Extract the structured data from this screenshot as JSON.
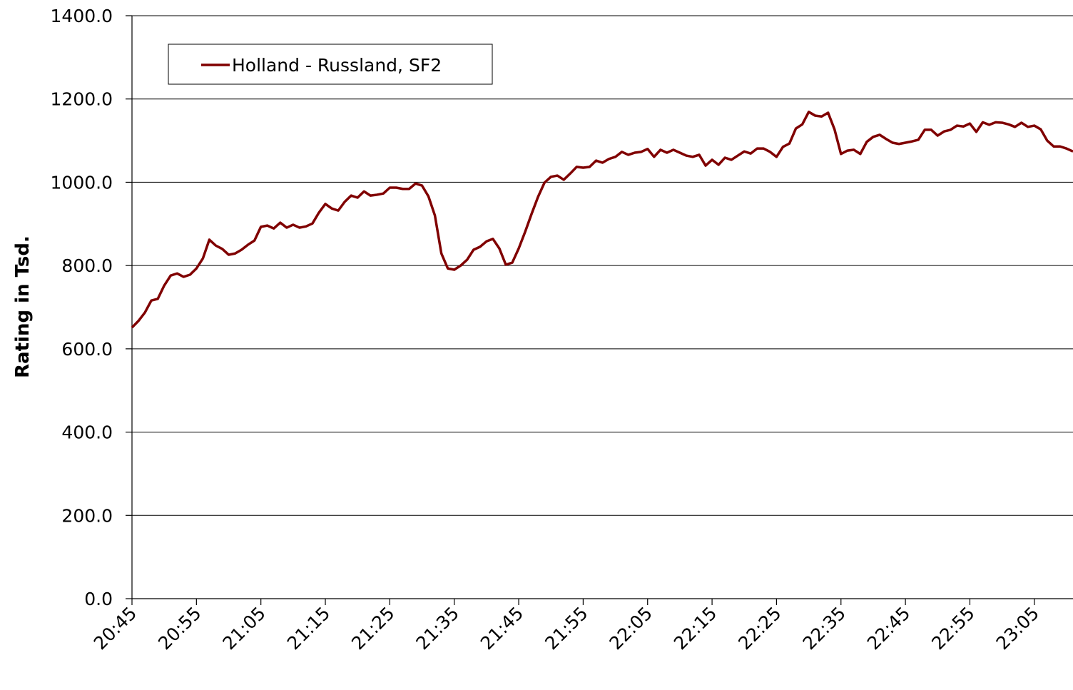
{
  "chart_data": {
    "type": "line",
    "y_label": "Rating in Tsd.",
    "categories": [
      "20:45",
      null,
      null,
      null,
      null,
      null,
      null,
      null,
      null,
      null,
      "20:55",
      null,
      null,
      null,
      null,
      null,
      null,
      null,
      null,
      null,
      "21:05",
      null,
      null,
      null,
      null,
      null,
      null,
      null,
      null,
      null,
      "21:15",
      null,
      null,
      null,
      null,
      null,
      null,
      null,
      null,
      null,
      "21:25",
      null,
      null,
      null,
      null,
      null,
      null,
      null,
      null,
      null,
      "21:35",
      null,
      null,
      null,
      null,
      null,
      null,
      null,
      null,
      null,
      "21:45",
      null,
      null,
      null,
      null,
      null,
      null,
      null,
      null,
      null,
      "21:55",
      null,
      null,
      null,
      null,
      null,
      null,
      null,
      null,
      null,
      "22:05",
      null,
      null,
      null,
      null,
      null,
      null,
      null,
      null,
      null,
      "22:15",
      null,
      null,
      null,
      null,
      null,
      null,
      null,
      null,
      null,
      "22:25",
      null,
      null,
      null,
      null,
      null,
      null,
      null,
      null,
      null,
      "22:35",
      null,
      null,
      null,
      null,
      null,
      null,
      null,
      null,
      null,
      "22:45",
      null,
      null,
      null,
      null,
      null,
      null,
      null,
      null,
      null,
      "22:55",
      null,
      null,
      null,
      null,
      null,
      null,
      null,
      null,
      null,
      "23:05",
      null,
      null,
      null,
      null,
      null,
      null
    ],
    "series": [
      {
        "name": "Holland - Russland, SF2",
        "color": "#800000",
        "values": [
          651,
          667,
          687,
          716,
          720,
          752,
          776,
          781,
          773,
          778,
          793,
          817,
          862,
          848,
          840,
          826,
          829,
          838,
          850,
          860,
          893,
          896,
          889,
          903,
          891,
          898,
          891,
          894,
          901,
          927,
          948,
          937,
          932,
          953,
          968,
          963,
          978,
          968,
          970,
          973,
          987,
          987,
          984,
          984,
          997,
          992,
          966,
          920,
          829,
          793,
          790,
          800,
          814,
          838,
          845,
          858,
          864,
          841,
          802,
          807,
          841,
          881,
          924,
          965,
          999,
          1013,
          1016,
          1006,
          1021,
          1037,
          1035,
          1037,
          1052,
          1047,
          1056,
          1061,
          1073,
          1066,
          1071,
          1073,
          1080,
          1061,
          1078,
          1071,
          1078,
          1071,
          1064,
          1061,
          1066,
          1040,
          1054,
          1042,
          1059,
          1054,
          1064,
          1074,
          1069,
          1081,
          1081,
          1073,
          1061,
          1085,
          1093,
          1129,
          1139,
          1169,
          1160,
          1158,
          1167,
          1127,
          1068,
          1076,
          1078,
          1068,
          1097,
          1109,
          1114,
          1104,
          1095,
          1092,
          1095,
          1098,
          1102,
          1126,
          1126,
          1112,
          1122,
          1126,
          1136,
          1134,
          1141,
          1121,
          1144,
          1138,
          1144,
          1143,
          1139,
          1133,
          1143,
          1133,
          1136,
          1127,
          1100,
          1086,
          1086,
          1081,
          1074
        ]
      }
    ],
    "ylim": [
      0,
      1400
    ],
    "yticks": [
      {
        "value": 0,
        "label": "0.0"
      },
      {
        "value": 200,
        "label": "200.0"
      },
      {
        "value": 400,
        "label": "400.0"
      },
      {
        "value": 600,
        "label": "600.0"
      },
      {
        "value": 800,
        "label": "800.0"
      },
      {
        "value": 1000,
        "label": "1000.0"
      },
      {
        "value": 1200,
        "label": "1200.0"
      },
      {
        "value": 1400,
        "label": "1400.0"
      }
    ],
    "grid": true,
    "legend": "top-left"
  }
}
